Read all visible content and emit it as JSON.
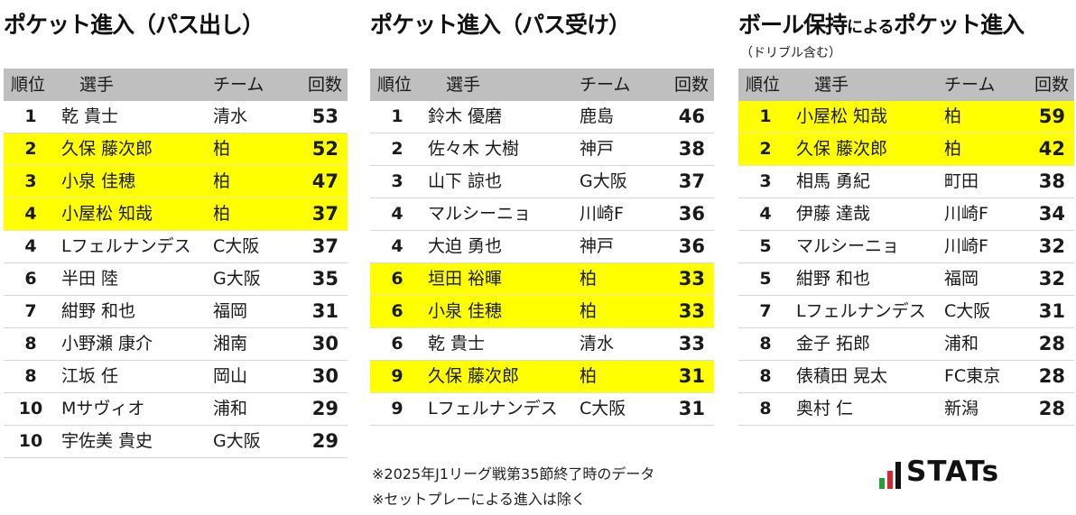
{
  "colors": {
    "highlight": "#ffff00",
    "header_bg": "#bfbfbf",
    "logo_green": "#2e9b3e",
    "logo_red": "#d9232d"
  },
  "headers": {
    "rank": "順位",
    "player": "選手",
    "team": "チーム",
    "count": "回数"
  },
  "panels": [
    {
      "title": "ポケット進入（パス出し）",
      "rows": [
        {
          "rank": "1",
          "name": "乾 貴士",
          "team": "清水",
          "count": "53",
          "highlight": false
        },
        {
          "rank": "2",
          "name": "久保 藤次郎",
          "team": "柏",
          "count": "52",
          "highlight": true
        },
        {
          "rank": "3",
          "name": "小泉 佳穂",
          "team": "柏",
          "count": "47",
          "highlight": true
        },
        {
          "rank": "4",
          "name": "小屋松 知哉",
          "team": "柏",
          "count": "37",
          "highlight": true
        },
        {
          "rank": "4",
          "name": "Lフェルナンデス",
          "team": "C大阪",
          "count": "37",
          "highlight": false
        },
        {
          "rank": "6",
          "name": "半田 陸",
          "team": "G大阪",
          "count": "35",
          "highlight": false
        },
        {
          "rank": "7",
          "name": "紺野 和也",
          "team": "福岡",
          "count": "31",
          "highlight": false
        },
        {
          "rank": "8",
          "name": "小野瀬 康介",
          "team": "湘南",
          "count": "30",
          "highlight": false
        },
        {
          "rank": "8",
          "name": "江坂 任",
          "team": "岡山",
          "count": "30",
          "highlight": false
        },
        {
          "rank": "10",
          "name": "Mサヴィオ",
          "team": "浦和",
          "count": "29",
          "highlight": false
        },
        {
          "rank": "10",
          "name": "宇佐美 貴史",
          "team": "G大阪",
          "count": "29",
          "highlight": false
        }
      ]
    },
    {
      "title": "ポケット進入（パス受け）",
      "rows": [
        {
          "rank": "1",
          "name": "鈴木 優磨",
          "team": "鹿島",
          "count": "46",
          "highlight": false
        },
        {
          "rank": "2",
          "name": "佐々木 大樹",
          "team": "神戸",
          "count": "38",
          "highlight": false
        },
        {
          "rank": "3",
          "name": "山下 諒也",
          "team": "G大阪",
          "count": "37",
          "highlight": false
        },
        {
          "rank": "4",
          "name": "マルシーニョ",
          "team": "川崎F",
          "count": "36",
          "highlight": false
        },
        {
          "rank": "4",
          "name": "大迫 勇也",
          "team": "神戸",
          "count": "36",
          "highlight": false
        },
        {
          "rank": "6",
          "name": "垣田 裕暉",
          "team": "柏",
          "count": "33",
          "highlight": true
        },
        {
          "rank": "6",
          "name": "小泉 佳穂",
          "team": "柏",
          "count": "33",
          "highlight": true
        },
        {
          "rank": "6",
          "name": "乾 貴士",
          "team": "清水",
          "count": "33",
          "highlight": false
        },
        {
          "rank": "9",
          "name": "久保 藤次郎",
          "team": "柏",
          "count": "31",
          "highlight": true
        },
        {
          "rank": "9",
          "name": "Lフェルナンデス",
          "team": "C大阪",
          "count": "31",
          "highlight": false
        }
      ]
    },
    {
      "title_main": "ボール保持",
      "title_small": "による",
      "title_end": "ポケット進入",
      "subtitle": "（ドリブル含む）",
      "rows": [
        {
          "rank": "1",
          "name": "小屋松 知哉",
          "team": "柏",
          "count": "59",
          "highlight": true
        },
        {
          "rank": "2",
          "name": "久保 藤次郎",
          "team": "柏",
          "count": "42",
          "highlight": true
        },
        {
          "rank": "3",
          "name": "相馬 勇紀",
          "team": "町田",
          "count": "38",
          "highlight": false
        },
        {
          "rank": "4",
          "name": "伊藤 達哉",
          "team": "川崎F",
          "count": "34",
          "highlight": false
        },
        {
          "rank": "5",
          "name": "マルシーニョ",
          "team": "川崎F",
          "count": "32",
          "highlight": false
        },
        {
          "rank": "5",
          "name": "紺野 和也",
          "team": "福岡",
          "count": "32",
          "highlight": false
        },
        {
          "rank": "7",
          "name": "Lフェルナンデス",
          "team": "C大阪",
          "count": "31",
          "highlight": false
        },
        {
          "rank": "8",
          "name": "金子 拓郎",
          "team": "浦和",
          "count": "28",
          "highlight": false
        },
        {
          "rank": "8",
          "name": "俵積田 晃太",
          "team": "FC東京",
          "count": "28",
          "highlight": false
        },
        {
          "rank": "8",
          "name": "奥村 仁",
          "team": "新潟",
          "count": "28",
          "highlight": false
        }
      ]
    }
  ],
  "notes": [
    "※2025年J1リーグ戦第35節終了時のデータ",
    "※セットプレーによる進入は除く"
  ],
  "logo": {
    "text": "STATs"
  }
}
